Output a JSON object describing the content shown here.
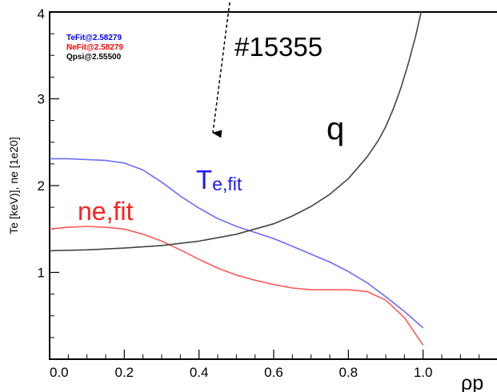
{
  "chart_data": {
    "type": "line",
    "title": "",
    "xlabel": "ρp",
    "ylabel": "Te [keV)],  ne [1e20]",
    "xlim": [
      0.0,
      1.2
    ],
    "ylim": [
      0.0,
      4.0
    ],
    "xticks": [
      "0.0",
      "0.2",
      "0.4",
      "0.6",
      "0.8",
      "1.0"
    ],
    "yticks": [
      "1",
      "2",
      "3",
      "4"
    ],
    "legend": [
      {
        "text": "TeFit@2.58279",
        "color": "#0000ff"
      },
      {
        "text": "NeFit@2.58279",
        "color": "#ff0000"
      },
      {
        "text": "Qpsi@2.55500",
        "color": "#000000"
      }
    ],
    "annotations": {
      "shot": "#15355",
      "q_label": "q",
      "te_label_main": "T",
      "te_label_sub": "e,fit",
      "ne_label": "ne,fit"
    },
    "colors": {
      "te": "#6a6aff",
      "ne": "#ff5a5a",
      "q": "#444444"
    },
    "series": [
      {
        "key": "te",
        "x": [
          0.0,
          0.05,
          0.1,
          0.15,
          0.2,
          0.25,
          0.3,
          0.35,
          0.4,
          0.45,
          0.5,
          0.55,
          0.6,
          0.65,
          0.7,
          0.75,
          0.8,
          0.85,
          0.9,
          0.95,
          1.0
        ],
        "values": [
          2.31,
          2.31,
          2.3,
          2.29,
          2.26,
          2.18,
          2.04,
          1.88,
          1.74,
          1.62,
          1.53,
          1.46,
          1.39,
          1.3,
          1.21,
          1.12,
          1.01,
          0.88,
          0.72,
          0.55,
          0.36
        ]
      },
      {
        "key": "ne",
        "x": [
          0.0,
          0.05,
          0.1,
          0.15,
          0.2,
          0.25,
          0.3,
          0.35,
          0.4,
          0.45,
          0.5,
          0.55,
          0.6,
          0.65,
          0.7,
          0.75,
          0.8,
          0.85,
          0.9,
          0.95,
          1.0
        ],
        "values": [
          1.5,
          1.52,
          1.53,
          1.52,
          1.5,
          1.44,
          1.36,
          1.26,
          1.15,
          1.05,
          0.97,
          0.91,
          0.86,
          0.82,
          0.8,
          0.8,
          0.8,
          0.78,
          0.68,
          0.48,
          0.16
        ]
      },
      {
        "key": "q",
        "x": [
          0.0,
          0.1,
          0.2,
          0.3,
          0.4,
          0.5,
          0.6,
          0.65,
          0.7,
          0.75,
          0.8,
          0.85,
          0.88,
          0.9,
          0.92,
          0.94,
          0.96,
          0.98,
          1.0
        ],
        "values": [
          1.25,
          1.26,
          1.28,
          1.31,
          1.36,
          1.44,
          1.56,
          1.65,
          1.76,
          1.9,
          2.08,
          2.33,
          2.52,
          2.68,
          2.88,
          3.12,
          3.4,
          3.72,
          4.1
        ]
      }
    ]
  }
}
